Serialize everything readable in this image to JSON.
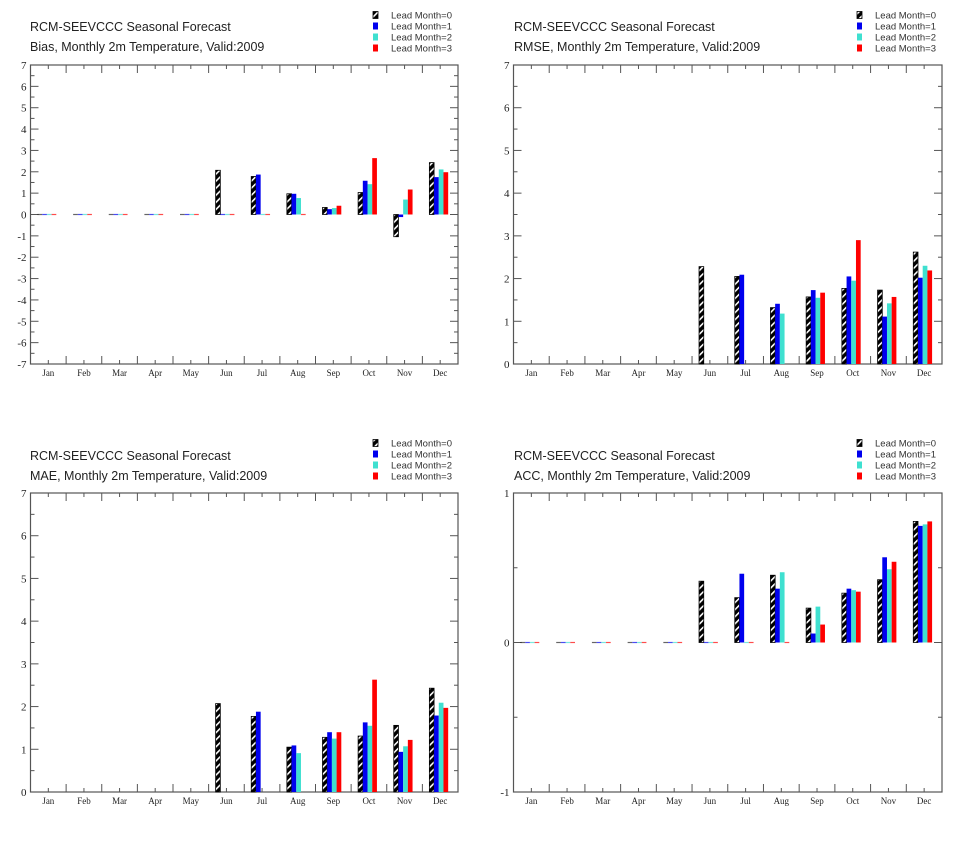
{
  "colors": {
    "lead0": "#000000",
    "lead1": "#0000ee",
    "lead2": "#3fe0d0",
    "lead3": "#ff0000"
  },
  "chart_data": [
    {
      "type": "bar",
      "id": "bias",
      "title": "RCM-SEEVCCC Seasonal Forecast",
      "subtitle": "Bias, Monthly 2m Temperature, Valid:2009",
      "xlabel": "",
      "ylabel": "",
      "categories": [
        "Jan",
        "Feb",
        "Mar",
        "Apr",
        "May",
        "Jun",
        "Jul",
        "Aug",
        "Sep",
        "Oct",
        "Nov",
        "Dec"
      ],
      "ylim": [
        -7,
        7
      ],
      "yticks": [
        -7,
        -6,
        -5,
        -4,
        -3,
        -2,
        -1,
        0,
        1,
        2,
        3,
        4,
        5,
        6,
        7
      ],
      "legend": [
        "Lead Month=0",
        "Lead Month=1",
        "Lead Month=2",
        "Lead Month=3"
      ],
      "legend_position": "top-right",
      "grid": false,
      "series": [
        {
          "name": "Lead Month=0",
          "values": [
            0,
            0,
            0,
            0,
            0,
            2.07,
            1.78,
            0.97,
            0.33,
            1.03,
            -1.04,
            2.43
          ]
        },
        {
          "name": "Lead Month=1",
          "values": [
            0,
            0,
            0,
            0,
            0,
            0,
            1.87,
            0.97,
            0.25,
            1.58,
            -0.12,
            1.75
          ]
        },
        {
          "name": "Lead Month=2",
          "values": [
            0,
            0,
            0,
            0,
            0,
            0,
            0,
            0.77,
            0.3,
            1.42,
            0.7,
            2.11
          ]
        },
        {
          "name": "Lead Month=3",
          "values": [
            0,
            0,
            0,
            0,
            0,
            0,
            0,
            0,
            0.41,
            2.64,
            1.17,
            1.98
          ]
        }
      ]
    },
    {
      "type": "bar",
      "id": "rmse",
      "title": "RCM-SEEVCCC Seasonal Forecast",
      "subtitle": "RMSE, Monthly 2m Temperature, Valid:2009",
      "xlabel": "",
      "ylabel": "",
      "categories": [
        "Jan",
        "Feb",
        "Mar",
        "Apr",
        "May",
        "Jun",
        "Jul",
        "Aug",
        "Sep",
        "Oct",
        "Nov",
        "Dec"
      ],
      "ylim": [
        0,
        7
      ],
      "yticks": [
        0,
        1,
        2,
        3,
        4,
        5,
        6,
        7
      ],
      "legend": [
        "Lead Month=0",
        "Lead Month=1",
        "Lead Month=2",
        "Lead Month=3"
      ],
      "legend_position": "top-right",
      "grid": false,
      "series": [
        {
          "name": "Lead Month=0",
          "values": [
            null,
            null,
            null,
            null,
            null,
            2.28,
            2.05,
            1.32,
            1.57,
            1.77,
            1.73,
            2.62
          ]
        },
        {
          "name": "Lead Month=1",
          "values": [
            null,
            null,
            null,
            null,
            null,
            null,
            2.09,
            1.41,
            1.73,
            2.05,
            1.11,
            2.02
          ]
        },
        {
          "name": "Lead Month=2",
          "values": [
            null,
            null,
            null,
            null,
            null,
            null,
            null,
            1.18,
            1.55,
            1.95,
            1.42,
            2.3
          ]
        },
        {
          "name": "Lead Month=3",
          "values": [
            null,
            null,
            null,
            null,
            null,
            null,
            null,
            null,
            1.67,
            2.9,
            1.57,
            2.19
          ]
        }
      ]
    },
    {
      "type": "bar",
      "id": "mae",
      "title": "RCM-SEEVCCC Seasonal Forecast",
      "subtitle": "MAE, Monthly 2m Temperature, Valid:2009",
      "xlabel": "",
      "ylabel": "",
      "categories": [
        "Jan",
        "Feb",
        "Mar",
        "Apr",
        "May",
        "Jun",
        "Jul",
        "Aug",
        "Sep",
        "Oct",
        "Nov",
        "Dec"
      ],
      "ylim": [
        0,
        7
      ],
      "yticks": [
        0,
        1,
        2,
        3,
        4,
        5,
        6,
        7
      ],
      "legend": [
        "Lead Month=0",
        "Lead Month=1",
        "Lead Month=2",
        "Lead Month=3"
      ],
      "legend_position": "top-right",
      "grid": false,
      "series": [
        {
          "name": "Lead Month=0",
          "values": [
            null,
            null,
            null,
            null,
            null,
            2.07,
            1.77,
            1.05,
            1.28,
            1.31,
            1.56,
            2.43
          ]
        },
        {
          "name": "Lead Month=1",
          "values": [
            null,
            null,
            null,
            null,
            null,
            null,
            1.88,
            1.09,
            1.4,
            1.63,
            0.94,
            1.79
          ]
        },
        {
          "name": "Lead Month=2",
          "values": [
            null,
            null,
            null,
            null,
            null,
            null,
            null,
            0.91,
            1.25,
            1.55,
            1.07,
            2.09
          ]
        },
        {
          "name": "Lead Month=3",
          "values": [
            null,
            null,
            null,
            null,
            null,
            null,
            null,
            null,
            1.4,
            2.63,
            1.22,
            1.97
          ]
        }
      ]
    },
    {
      "type": "bar",
      "id": "acc",
      "title": "RCM-SEEVCCC Seasonal Forecast",
      "subtitle": "ACC, Monthly 2m Temperature, Valid:2009",
      "xlabel": "",
      "ylabel": "",
      "categories": [
        "Jan",
        "Feb",
        "Mar",
        "Apr",
        "May",
        "Jun",
        "Jul",
        "Aug",
        "Sep",
        "Oct",
        "Nov",
        "Dec"
      ],
      "ylim": [
        -1,
        1
      ],
      "yticks": [
        -1,
        0,
        1
      ],
      "legend": [
        "Lead Month=0",
        "Lead Month=1",
        "Lead Month=2",
        "Lead Month=3"
      ],
      "legend_position": "top-right",
      "grid": false,
      "series": [
        {
          "name": "Lead Month=0",
          "values": [
            0,
            0,
            0,
            0,
            0,
            0.41,
            0.3,
            0.45,
            0.23,
            0.33,
            0.42,
            0.81
          ]
        },
        {
          "name": "Lead Month=1",
          "values": [
            0,
            0,
            0,
            0,
            0,
            0,
            0.46,
            0.36,
            0.06,
            0.36,
            0.57,
            0.78
          ]
        },
        {
          "name": "Lead Month=2",
          "values": [
            0,
            0,
            0,
            0,
            0,
            0,
            0,
            0.47,
            0.24,
            0.35,
            0.49,
            0.79
          ]
        },
        {
          "name": "Lead Month=3",
          "values": [
            0,
            0,
            0,
            0,
            0,
            0,
            0,
            0,
            0.12,
            0.34,
            0.54,
            0.81
          ]
        }
      ]
    }
  ]
}
